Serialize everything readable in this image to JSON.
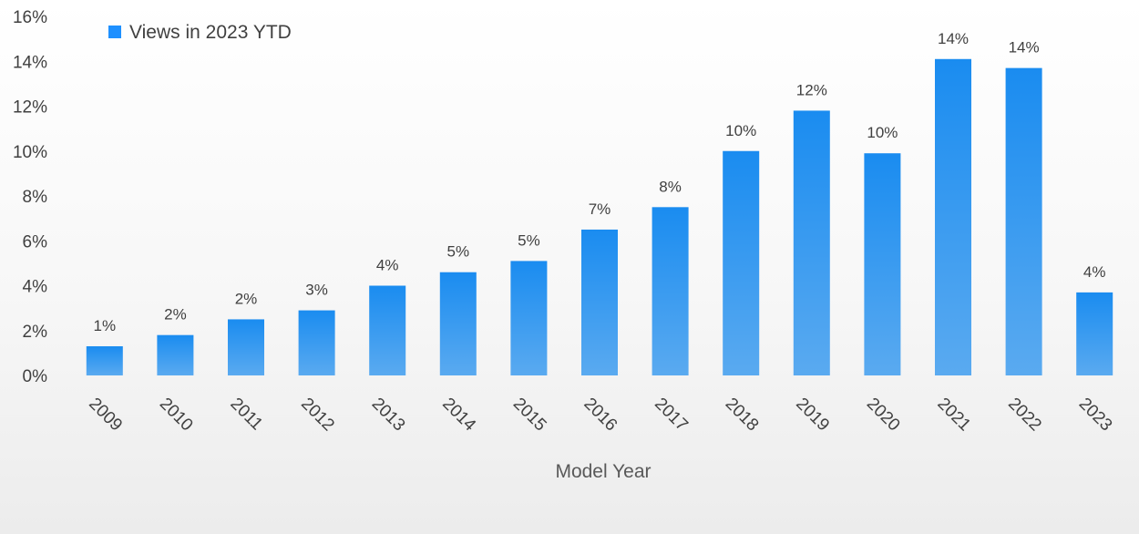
{
  "chart_data": {
    "type": "bar",
    "title": "",
    "xlabel": "Model Year",
    "ylabel": "",
    "ylim": [
      0,
      16
    ],
    "y_ticks": [
      "0%",
      "2%",
      "4%",
      "6%",
      "8%",
      "10%",
      "12%",
      "14%",
      "16%"
    ],
    "categories": [
      "2009",
      "2010",
      "2011",
      "2012",
      "2013",
      "2014",
      "2015",
      "2016",
      "2017",
      "2018",
      "2019",
      "2020",
      "2021",
      "2022",
      "2023"
    ],
    "series": [
      {
        "name": "Views in 2023 YTD",
        "values": [
          1.3,
          1.8,
          2.5,
          2.9,
          4.0,
          4.6,
          5.1,
          6.5,
          7.5,
          10.0,
          11.8,
          9.9,
          14.1,
          13.7,
          3.7
        ],
        "data_labels": [
          "1%",
          "2%",
          "2%",
          "3%",
          "4%",
          "5%",
          "5%",
          "7%",
          "8%",
          "10%",
          "12%",
          "10%",
          "14%",
          "14%",
          "4%"
        ]
      }
    ],
    "legend": {
      "position": "top-left"
    },
    "grid": false,
    "colors": {
      "bar_top": "#1a8cf0",
      "bar_bottom": "#5aaaf0",
      "legend_swatch": "#1e90ff"
    }
  }
}
